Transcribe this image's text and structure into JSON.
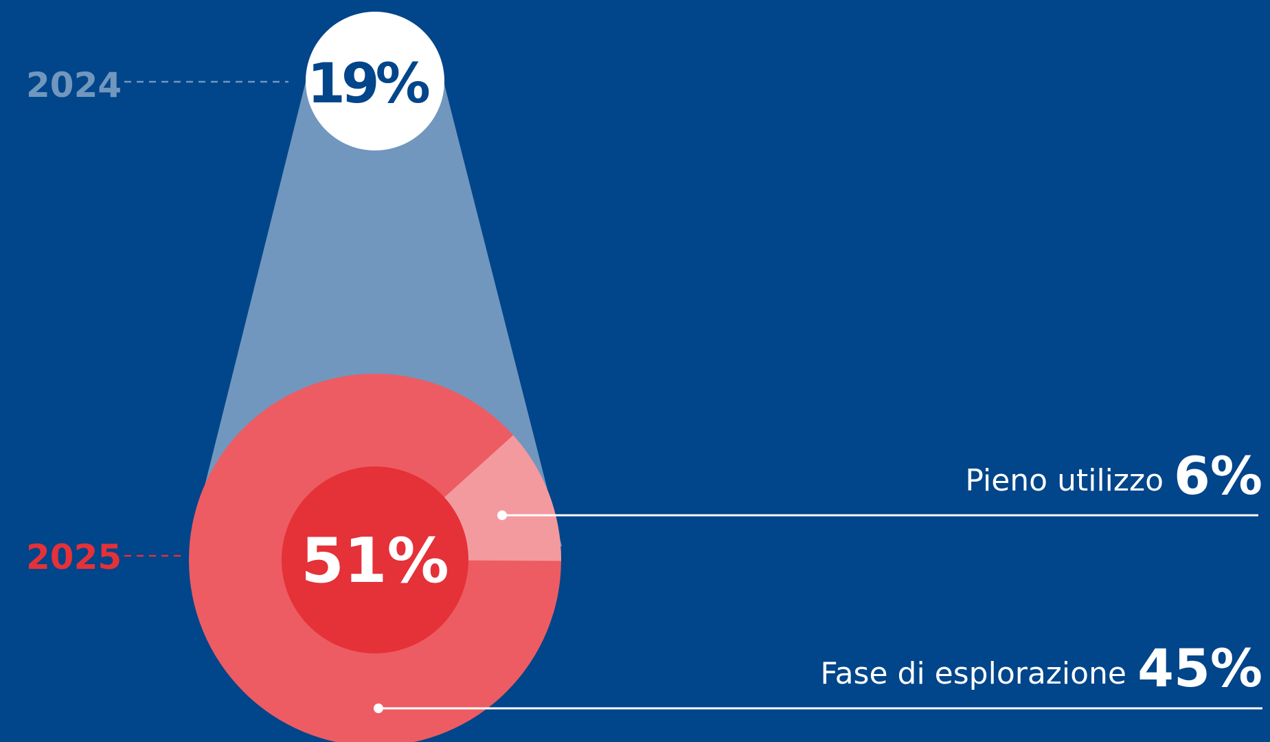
{
  "colors": {
    "background": "#01458a",
    "beam": "#7197bf",
    "ring": "#ed5c62",
    "ring_highlight": "#f39a9f",
    "core": "#e53138",
    "bubble": "#ffffff",
    "bubble_text": "#01458a",
    "year_2024": "#7197bf",
    "year_2025": "#e53138",
    "leader": "#ffffff"
  },
  "chart_data": {
    "type": "pie",
    "years": [
      {
        "label": "2024",
        "total": 19,
        "total_label": "19%"
      },
      {
        "label": "2025",
        "total": 51,
        "total_label": "51%"
      }
    ],
    "breakdown_2025": [
      {
        "name": "Pieno utilizzo",
        "value": 6,
        "value_label": "6%"
      },
      {
        "name": "Fase di esplorazione",
        "value": 45,
        "value_label": "45%"
      }
    ]
  }
}
